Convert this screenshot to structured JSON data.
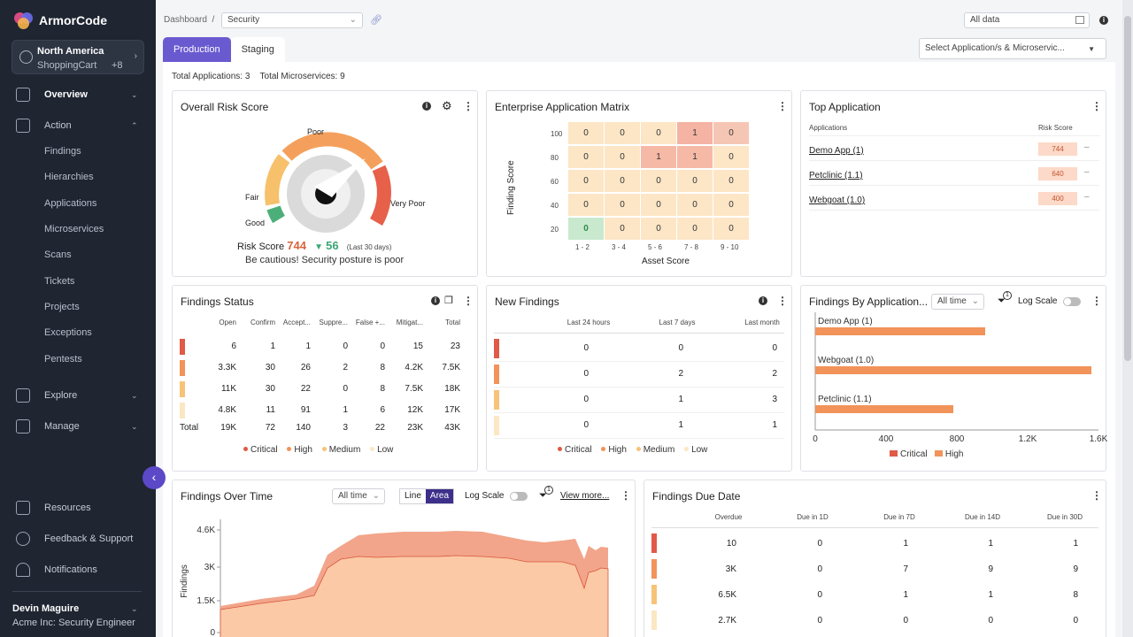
{
  "app": {
    "brand": "ArmorCode"
  },
  "region": {
    "name": "North America",
    "project": "ShoppingCart",
    "extra": "+8"
  },
  "nav": {
    "overview": "Overview",
    "action": "Action",
    "action_items": [
      "Findings",
      "Hierarchies",
      "Applications",
      "Microservices",
      "Scans",
      "Tickets",
      "Projects",
      "Exceptions",
      "Pentests"
    ],
    "explore": "Explore",
    "manage": "Manage",
    "resources": "Resources",
    "feedback": "Feedback & Support",
    "notifications": "Notifications"
  },
  "user": {
    "name": "Devin Maguire",
    "role": "Acme Inc: Security Engineer"
  },
  "topbar": {
    "breadcrumb": "Dashboard",
    "breadcrumb_sep": "/",
    "dashboard_select": "Security",
    "date_filter": "All data"
  },
  "tabs": [
    "Production",
    "Staging"
  ],
  "app_select_placeholder": "Select Application/s & Microservic...",
  "totals": {
    "applications": "Total Applications: 3",
    "microservices": "Total Microservices: 9"
  },
  "risk": {
    "title": "Overall Risk Score",
    "labels": {
      "poor": "Poor",
      "fair": "Fair",
      "good": "Good",
      "very_poor": "Very Poor"
    },
    "score_label": "Risk Score",
    "score": "744",
    "delta": "56",
    "delta_period": "(Last 30 days)",
    "message": "Be cautious! Security posture is poor",
    "colors": {
      "good": "#4caf7a",
      "fair": "#f7c06a",
      "poor": "#f4a05c",
      "very_poor": "#e7604a"
    }
  },
  "matrix": {
    "title": "Enterprise Application Matrix",
    "y_label": "Finding Score",
    "x_label": "Asset Score",
    "y_ticks": [
      "100",
      "80",
      "60",
      "40",
      "20"
    ],
    "x_ticks": [
      "1 - 2",
      "3 - 4",
      "5 - 6",
      "7 - 8",
      "9 - 10"
    ],
    "rows": [
      [
        "0",
        "0",
        "0",
        "1",
        "0"
      ],
      [
        "0",
        "0",
        "1",
        "1",
        "0"
      ],
      [
        "0",
        "0",
        "0",
        "0",
        "0"
      ],
      [
        "0",
        "0",
        "0",
        "0",
        "0"
      ],
      [
        "0",
        "0",
        "0",
        "0",
        "0"
      ]
    ]
  },
  "top_app": {
    "title": "Top Application",
    "col_app": "Applications",
    "col_score": "Risk Score",
    "rows": [
      {
        "name": "Demo App (1)",
        "score": "744"
      },
      {
        "name": "Petclinic (1.1)",
        "score": "640"
      },
      {
        "name": "Webgoat (1.0)",
        "score": "400"
      }
    ]
  },
  "findings_status": {
    "title": "Findings Status",
    "cols": [
      "Open",
      "Confirm",
      "Accept...",
      "Suppre...",
      "False +...",
      "Mitigat...",
      "Total"
    ],
    "rows": [
      [
        "6",
        "1",
        "1",
        "0",
        "0",
        "15",
        "23"
      ],
      [
        "3.3K",
        "30",
        "26",
        "2",
        "8",
        "4.2K",
        "7.5K"
      ],
      [
        "11K",
        "30",
        "22",
        "0",
        "8",
        "7.5K",
        "18K"
      ],
      [
        "4.8K",
        "11",
        "91",
        "1",
        "6",
        "12K",
        "17K"
      ]
    ],
    "total_label": "Total",
    "total_row": [
      "19K",
      "72",
      "140",
      "3",
      "22",
      "23K",
      "43K"
    ]
  },
  "severity": {
    "labels": [
      "Critical",
      "High",
      "Medium",
      "Low"
    ],
    "colors": [
      "#e05a47",
      "#f2935a",
      "#f7c378",
      "#fbe7c4"
    ]
  },
  "new_findings": {
    "title": "New Findings",
    "cols": [
      "Last 24 hours",
      "Last 7 days",
      "Last month"
    ],
    "rows": [
      [
        "0",
        "0",
        "0"
      ],
      [
        "0",
        "2",
        "2"
      ],
      [
        "0",
        "1",
        "3"
      ],
      [
        "0",
        "1",
        "1"
      ]
    ]
  },
  "by_app": {
    "title": "Findings By Application...",
    "time": "All time",
    "filter_badge": "1",
    "log_scale": "Log Scale",
    "legend": [
      "Critical",
      "High"
    ],
    "x_ticks": [
      "0",
      "400",
      "800",
      "1.2K",
      "1.6K"
    ]
  },
  "chart_data": {
    "type": "bar",
    "orientation": "horizontal",
    "categories": [
      "Demo App (1)",
      "Webgoat (1.0)",
      "Petclinic (1.1)"
    ],
    "series": [
      {
        "name": "Critical",
        "values": [
          0,
          0,
          0
        ]
      },
      {
        "name": "High",
        "values": [
          960,
          1560,
          780
        ]
      }
    ],
    "xlim": [
      0,
      1600
    ],
    "colors": {
      "Critical": "#e05a47",
      "High": "#f2935a"
    },
    "grid": false,
    "legend": "bottom"
  },
  "over_time": {
    "title": "Findings Over Time",
    "time": "All time",
    "mode_line": "Line",
    "mode_area": "Area",
    "log_scale": "Log Scale",
    "filter_badge": "1",
    "view_more": "View more...",
    "y_label": "Findings",
    "y_ticks": [
      "4.6K",
      "3K",
      "1.5K",
      "0"
    ]
  },
  "due_date": {
    "title": "Findings Due Date",
    "cols": [
      "Overdue",
      "Due in 1D",
      "Due in 7D",
      "Due in 14D",
      "Due in 30D"
    ],
    "rows": [
      [
        "10",
        "0",
        "1",
        "1",
        "1"
      ],
      [
        "3K",
        "0",
        "7",
        "9",
        "9"
      ],
      [
        "6.5K",
        "0",
        "1",
        "1",
        "8"
      ],
      [
        "2.7K",
        "0",
        "0",
        "0",
        "0"
      ]
    ]
  }
}
